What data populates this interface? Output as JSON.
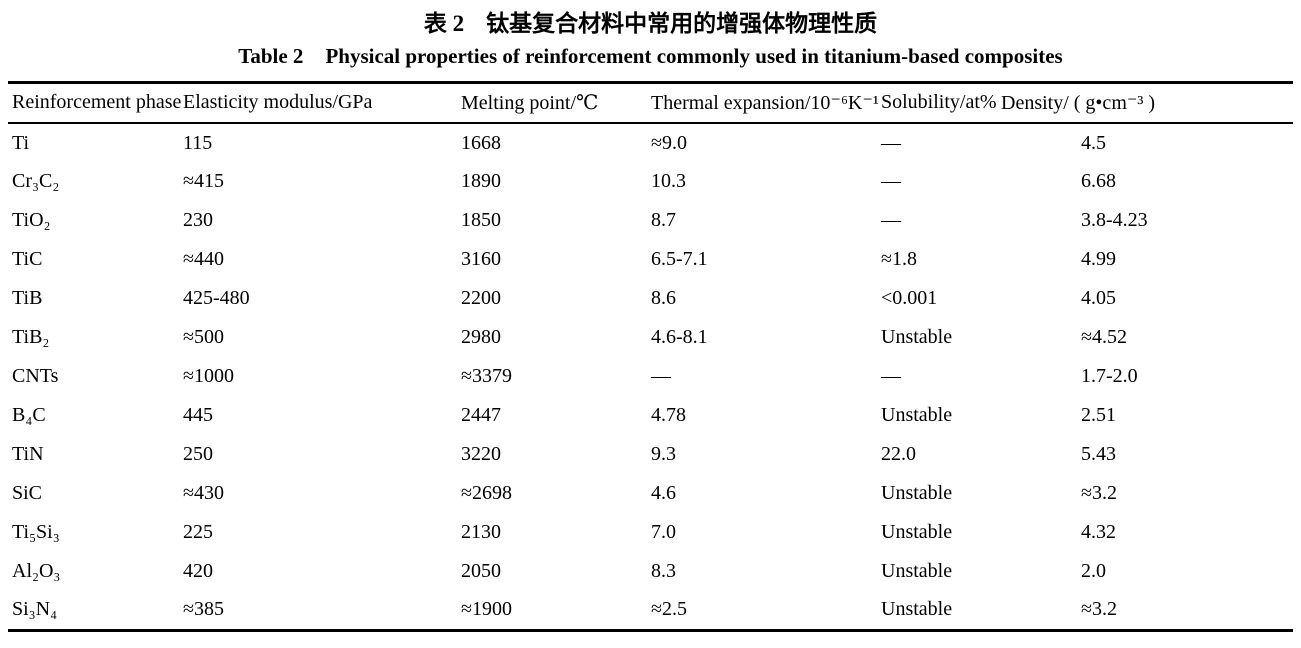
{
  "caption": {
    "zh_label": "表 2",
    "zh_title": "钛基复合材料中常用的增强体物理性质",
    "en_label": "Table 2",
    "en_title": "Physical properties of reinforcement commonly used in titanium-based composites"
  },
  "table": {
    "columns": [
      "Reinforcement phase",
      "Elasticity modulus/GPa",
      "Melting point/℃",
      "Thermal expansion/10⁻⁶K⁻¹",
      "Solubility/at%",
      "Density/ ( g•cm⁻³ )"
    ],
    "rows": [
      [
        "Ti",
        "115",
        "1668",
        "≈9.0",
        "—",
        "4.5"
      ],
      [
        "Cr₃C₂",
        "≈415",
        "1890",
        "10.3",
        "—",
        "6.68"
      ],
      [
        "TiO₂",
        "230",
        "1850",
        "8.7",
        "—",
        "3.8-4.23"
      ],
      [
        "TiC",
        "≈440",
        "3160",
        "6.5-7.1",
        "≈1.8",
        "4.99"
      ],
      [
        "TiB",
        "425-480",
        "2200",
        "8.6",
        "<0.001",
        "4.05"
      ],
      [
        "TiB₂",
        "≈500",
        "2980",
        "4.6-8.1",
        "Unstable",
        "≈4.52"
      ],
      [
        "CNTs",
        "≈1000",
        "≈3379",
        "—",
        "—",
        "1.7-2.0"
      ],
      [
        "B₄C",
        "445",
        "2447",
        "4.78",
        "Unstable",
        "2.51"
      ],
      [
        "TiN",
        "250",
        "3220",
        "9.3",
        "22.0",
        "5.43"
      ],
      [
        "SiC",
        "≈430",
        "≈2698",
        "4.6",
        "Unstable",
        "≈3.2"
      ],
      [
        "Ti₅Si₃",
        "225",
        "2130",
        "7.0",
        "Unstable",
        "4.32"
      ],
      [
        "Al₂O₃",
        "420",
        "2050",
        "8.3",
        "Unstable",
        "2.0"
      ],
      [
        "Si₃N₄",
        "≈385",
        "≈1900",
        "≈2.5",
        "Unstable",
        "≈3.2"
      ]
    ]
  },
  "colors": {
    "background": "#ffffff",
    "text": "#000000",
    "rule": "#000000"
  }
}
